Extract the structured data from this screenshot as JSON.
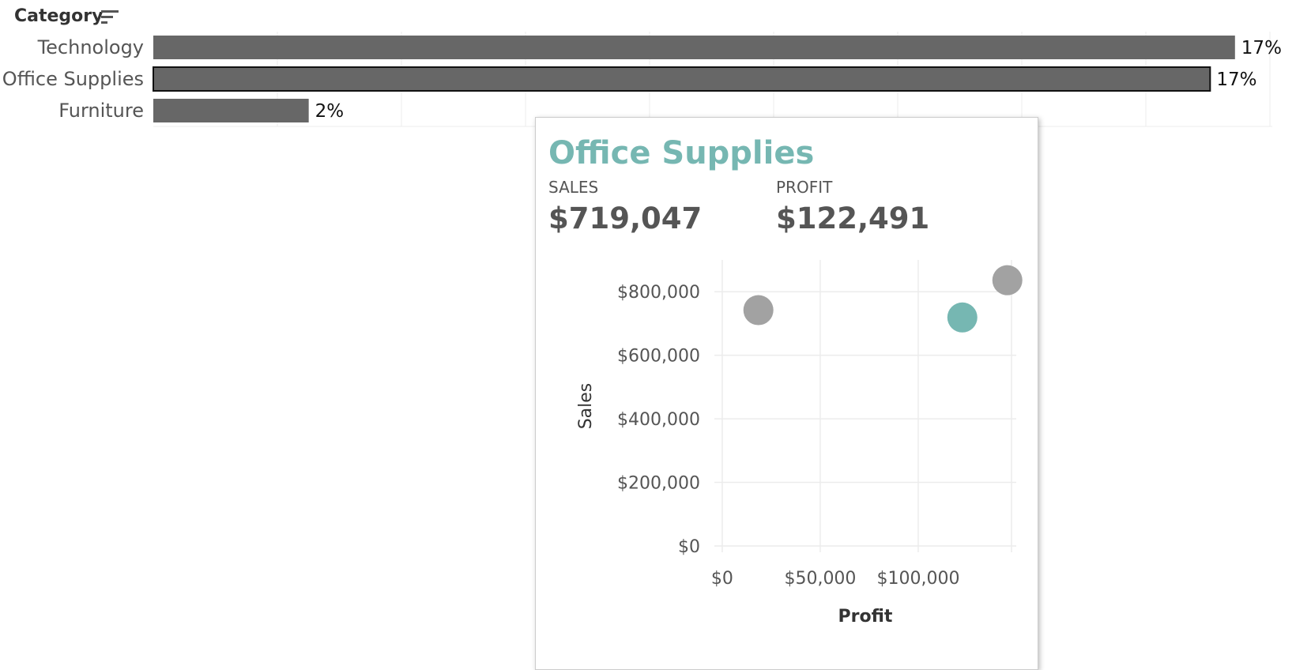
{
  "header": {
    "title": "Category",
    "sort_icon": "sort-descending-icon"
  },
  "colors": {
    "bar": "#676767",
    "highlight": "#76b7b2",
    "dot": "#a2a2a2",
    "text": "#555555",
    "grid": "#ececec"
  },
  "chart_data": [
    {
      "type": "bar",
      "orientation": "horizontal",
      "title": "",
      "categories": [
        "Technology",
        "Office Supplies",
        "Furniture"
      ],
      "values": [
        17.4,
        17.0,
        2.5
      ],
      "labels": [
        "17%",
        "17%",
        "2%"
      ],
      "selected": "Office Supplies",
      "xlim": [
        0,
        18
      ],
      "grid": true
    },
    {
      "type": "scatter",
      "title": "",
      "xlabel": "Profit",
      "ylabel": "Sales",
      "xlim": [
        -4000,
        150000
      ],
      "ylim": [
        -20000,
        900000
      ],
      "xticks": [
        0,
        50000,
        100000
      ],
      "xtick_labels": [
        "$0",
        "$50,000",
        "$100,000"
      ],
      "yticks": [
        0,
        200000,
        400000,
        600000,
        800000
      ],
      "ytick_labels": [
        "$0",
        "$200,000",
        "$400,000",
        "$600,000",
        "$800,000"
      ],
      "points": [
        {
          "category": "Furniture",
          "x": 18451,
          "y": 741999,
          "highlight": false
        },
        {
          "category": "Office Supplies",
          "x": 122491,
          "y": 719047,
          "highlight": true
        },
        {
          "category": "Technology",
          "x": 145454,
          "y": 836154,
          "highlight": false
        }
      ],
      "grid": true
    }
  ],
  "tooltip": {
    "title": "Office Supplies",
    "sales_label": "SALES",
    "sales_value": "$719,047",
    "profit_label": "PROFIT",
    "profit_value": "$122,491"
  }
}
